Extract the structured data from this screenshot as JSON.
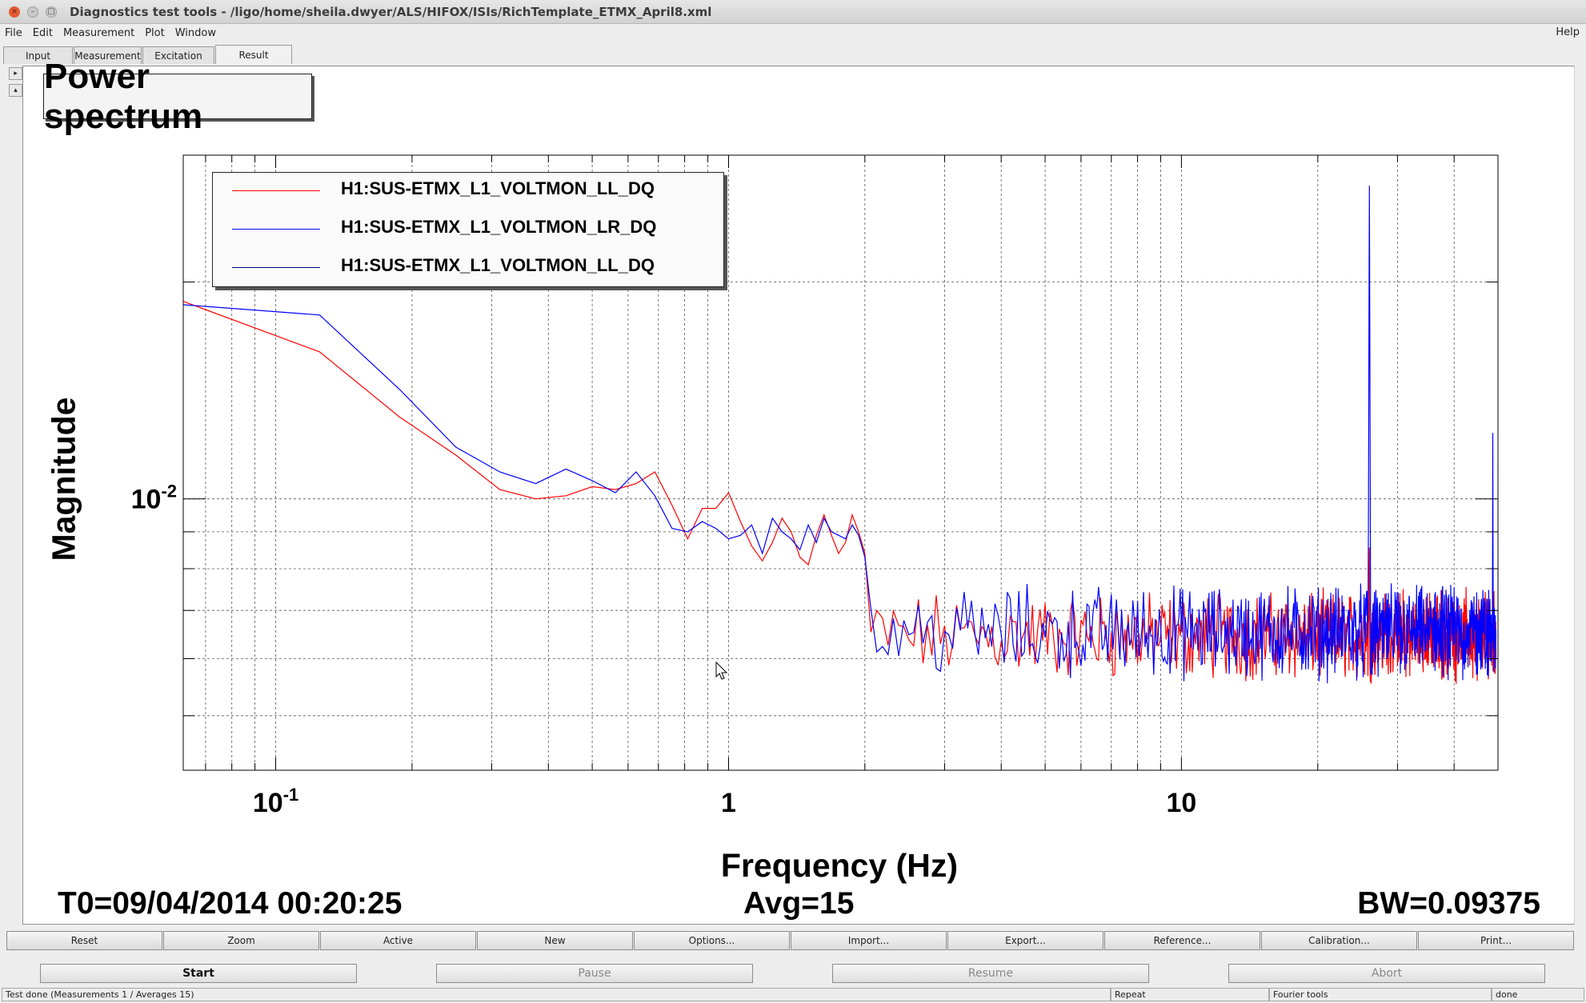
{
  "window": {
    "title": "Diagnostics test tools - /ligo/home/sheila.dwyer/ALS/HIFOX/ISIs/RichTemplate_ETMX_April8.xml",
    "close_glyph": "×",
    "min_glyph": "–",
    "max_glyph": "□"
  },
  "menu": {
    "items": [
      "File",
      "Edit",
      "Measurement",
      "Plot",
      "Window"
    ],
    "help": "Help"
  },
  "tabs": [
    {
      "label": "Input"
    },
    {
      "label": "Measurement"
    },
    {
      "label": "Excitation"
    },
    {
      "label": "Result"
    }
  ],
  "side": {
    "up_glyph": "▸",
    "down_glyph": "▴"
  },
  "plot": {
    "title": "Power spectrum",
    "xlabel": "Frequency (Hz)",
    "ylabel": "Magnitude",
    "t0": "T0=09/04/2014 00:20:25",
    "avg": "Avg=15",
    "bw": "BW=0.09375"
  },
  "chart_data": {
    "type": "line",
    "title": "Power spectrum",
    "xlabel": "Frequency (Hz)",
    "ylabel": "Magnitude",
    "x_scale": "log",
    "y_scale": "log",
    "xlim": [
      0.0625,
      50
    ],
    "ylim": [
      0.0042,
      0.03
    ],
    "x_ticks": [
      {
        "value": 0.1,
        "base": "10",
        "exp": "-1"
      },
      {
        "value": 1,
        "base": "1",
        "exp": ""
      },
      {
        "value": 10,
        "base": "10",
        "exp": ""
      }
    ],
    "y_ticks": [
      {
        "value": 0.01,
        "base": "10",
        "exp": "-2"
      }
    ],
    "grid": true,
    "legend_position": "top-left",
    "series": [
      {
        "name": "H1:SUS-ETMX_L1_VOLTMON_LL_DQ",
        "color": "#ff0000",
        "x": [
          0.0625,
          0.125,
          0.1875,
          0.25,
          0.3125,
          0.375,
          0.4375,
          0.5,
          0.5625,
          0.625,
          0.6875,
          0.75,
          0.8125,
          0.875,
          0.9375,
          1.0,
          1.0625,
          1.125,
          1.1875,
          1.25,
          1.3125,
          1.375,
          1.4375,
          1.5,
          1.5625,
          1.625,
          1.6875,
          1.75,
          1.8125,
          1.875,
          1.9375,
          2.0
        ],
        "y": [
          0.0188,
          0.016,
          0.013,
          0.0115,
          0.0103,
          0.01,
          0.0101,
          0.0104,
          0.0103,
          0.0105,
          0.0109,
          0.0098,
          0.0088,
          0.0097,
          0.0097,
          0.0102,
          0.0093,
          0.0086,
          0.0082,
          0.0087,
          0.0094,
          0.009,
          0.0083,
          0.0081,
          0.0089,
          0.0095,
          0.0089,
          0.0084,
          0.0087,
          0.0095,
          0.009,
          0.0084
        ],
        "noise_x_range": [
          2.0,
          49.5
        ],
        "noise_y_range": [
          0.0052,
          0.008
        ],
        "spikes": [
          {
            "x": 26.0,
            "y": 0.0089
          },
          {
            "x": 48.7,
            "y": 0.0081
          }
        ]
      },
      {
        "name": "H1:SUS-ETMX_L1_VOLTMON_LR_DQ",
        "color": "#0000ff",
        "x": [
          0.0625,
          0.125,
          0.1875,
          0.25,
          0.3125,
          0.375,
          0.4375,
          0.5,
          0.5625,
          0.625,
          0.6875,
          0.75,
          0.8125,
          0.875,
          0.9375,
          1.0,
          1.0625,
          1.125,
          1.1875,
          1.25,
          1.3125,
          1.375,
          1.4375,
          1.5,
          1.5625,
          1.625,
          1.6875,
          1.75,
          1.8125,
          1.875,
          1.9375,
          2.0
        ],
        "y": [
          0.0186,
          0.018,
          0.0142,
          0.0118,
          0.0109,
          0.0105,
          0.011,
          0.0106,
          0.0102,
          0.0109,
          0.0101,
          0.0091,
          0.009,
          0.0093,
          0.0091,
          0.0088,
          0.0089,
          0.0092,
          0.0084,
          0.0094,
          0.009,
          0.0088,
          0.0085,
          0.0092,
          0.0087,
          0.0094,
          0.009,
          0.0089,
          0.0088,
          0.0092,
          0.0089,
          0.0083
        ],
        "noise_x_range": [
          2.0,
          49.5
        ],
        "noise_y_range": [
          0.0052,
          0.0082
        ],
        "spikes": [
          {
            "x": 26.0,
            "y": 0.0289
          },
          {
            "x": 48.7,
            "y": 0.0146
          }
        ]
      },
      {
        "name": "H1:SUS-ETMX_L1_VOLTMON_LL_DQ",
        "color": "#000080",
        "x": [],
        "y": []
      }
    ]
  },
  "toolbar": {
    "buttons": [
      "Reset",
      "Zoom",
      "Active",
      "New",
      "Options...",
      "Import...",
      "Export...",
      "Reference...",
      "Calibration...",
      "Print..."
    ]
  },
  "controls": {
    "start": "Start",
    "pause": "Pause",
    "resume": "Resume",
    "abort": "Abort"
  },
  "status": {
    "message": "Test done (Measurements 1 / Averages 15)",
    "mode": "Repeat",
    "tools": "Fourier tools",
    "state": "done"
  }
}
